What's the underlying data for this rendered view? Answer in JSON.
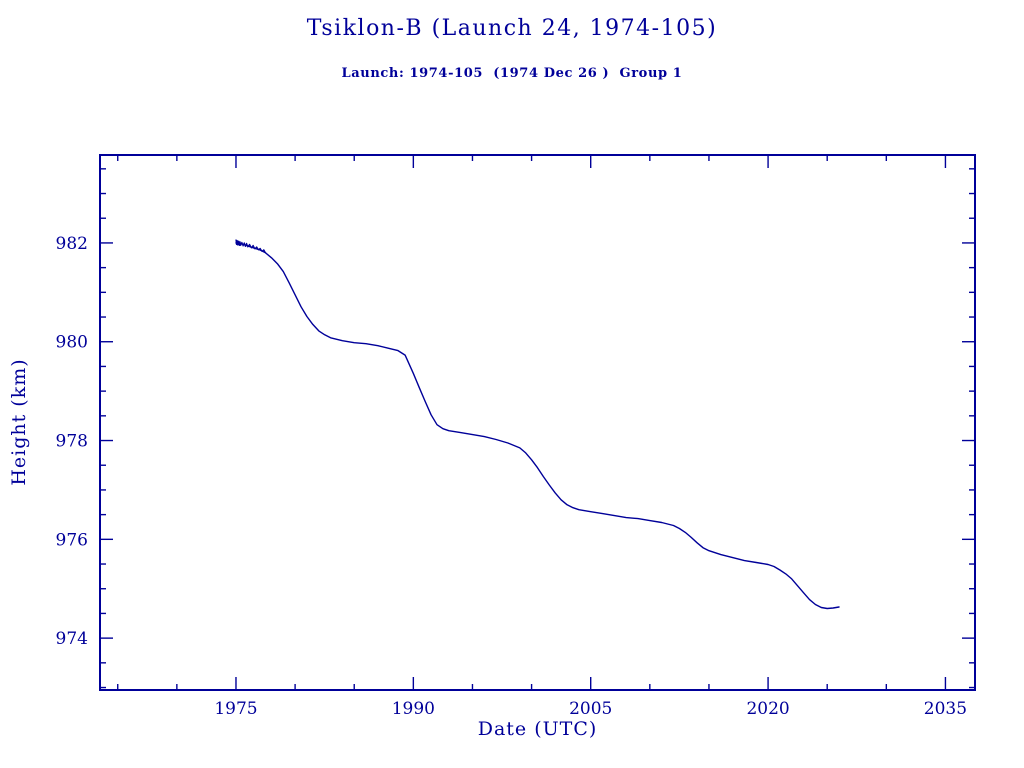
{
  "colors": {
    "ink": "#000099",
    "line": "#000099",
    "background": "#ffffff"
  },
  "chart_data": {
    "type": "line",
    "title": "Tsiklon-B (Launch 24, 1974-105)",
    "subtitle": "Launch: 1974-105  (1974 Dec 26 )  Group 1",
    "xlabel": "Date (UTC)",
    "ylabel": "Height (km)",
    "xlim": [
      1963.5,
      2037.5
    ],
    "ylim": [
      972.95,
      983.78
    ],
    "x_ticks": [
      1975,
      1990,
      2005,
      2020,
      2035
    ],
    "y_ticks": [
      974,
      976,
      978,
      980,
      982
    ],
    "x_minor_step": 5,
    "y_minor_step": 0.5,
    "grid": false,
    "legend": "none",
    "series": [
      {
        "name": "height_km",
        "points": [
          [
            1975.0,
            982.0
          ],
          [
            1975.5,
            981.98
          ],
          [
            1976.0,
            981.94
          ],
          [
            1976.5,
            981.9
          ],
          [
            1977.0,
            981.86
          ],
          [
            1977.5,
            981.8
          ],
          [
            1978.0,
            981.7
          ],
          [
            1978.5,
            981.58
          ],
          [
            1979.0,
            981.42
          ],
          [
            1979.5,
            981.19
          ],
          [
            1980.0,
            980.95
          ],
          [
            1980.5,
            980.71
          ],
          [
            1981.0,
            980.51
          ],
          [
            1981.5,
            980.35
          ],
          [
            1982.0,
            980.22
          ],
          [
            1982.5,
            980.14
          ],
          [
            1983.0,
            980.08
          ],
          [
            1984.0,
            980.02
          ],
          [
            1985.0,
            979.98
          ],
          [
            1986.0,
            979.96
          ],
          [
            1987.0,
            979.92
          ],
          [
            1988.0,
            979.86
          ],
          [
            1988.7,
            979.82
          ],
          [
            1989.3,
            979.73
          ],
          [
            1990.0,
            979.36
          ],
          [
            1990.5,
            979.07
          ],
          [
            1991.0,
            978.79
          ],
          [
            1991.5,
            978.52
          ],
          [
            1992.0,
            978.32
          ],
          [
            1992.5,
            978.24
          ],
          [
            1993.0,
            978.2
          ],
          [
            1994.0,
            978.16
          ],
          [
            1995.0,
            978.12
          ],
          [
            1996.0,
            978.08
          ],
          [
            1997.0,
            978.02
          ],
          [
            1998.0,
            977.95
          ],
          [
            1999.0,
            977.85
          ],
          [
            1999.5,
            977.75
          ],
          [
            2000.0,
            977.61
          ],
          [
            2000.5,
            977.45
          ],
          [
            2001.0,
            977.27
          ],
          [
            2001.5,
            977.1
          ],
          [
            2002.0,
            976.94
          ],
          [
            2002.5,
            976.8
          ],
          [
            2003.0,
            976.7
          ],
          [
            2003.5,
            976.64
          ],
          [
            2004.0,
            976.6
          ],
          [
            2005.0,
            976.56
          ],
          [
            2006.0,
            976.52
          ],
          [
            2007.0,
            976.48
          ],
          [
            2008.0,
            976.44
          ],
          [
            2009.0,
            976.42
          ],
          [
            2010.0,
            976.38
          ],
          [
            2011.0,
            976.34
          ],
          [
            2012.0,
            976.28
          ],
          [
            2012.5,
            976.22
          ],
          [
            2013.0,
            976.14
          ],
          [
            2013.5,
            976.04
          ],
          [
            2014.0,
            975.93
          ],
          [
            2014.5,
            975.83
          ],
          [
            2015.0,
            975.77
          ],
          [
            2016.0,
            975.69
          ],
          [
            2017.0,
            975.63
          ],
          [
            2018.0,
            975.57
          ],
          [
            2019.0,
            975.53
          ],
          [
            2020.0,
            975.49
          ],
          [
            2020.5,
            975.45
          ],
          [
            2021.0,
            975.38
          ],
          [
            2021.5,
            975.3
          ],
          [
            2022.0,
            975.2
          ],
          [
            2022.5,
            975.06
          ],
          [
            2023.0,
            974.92
          ],
          [
            2023.5,
            974.78
          ],
          [
            2024.0,
            974.68
          ],
          [
            2024.5,
            974.62
          ],
          [
            2025.0,
            974.6
          ],
          [
            2025.5,
            974.61
          ],
          [
            2026.0,
            974.63
          ]
        ]
      },
      {
        "name": "early_dense_tracking",
        "points": [
          [
            1975.0,
            982.06
          ],
          [
            1975.04,
            981.97
          ],
          [
            1975.08,
            982.05
          ],
          [
            1975.12,
            981.96
          ],
          [
            1975.16,
            982.04
          ],
          [
            1975.2,
            981.96
          ],
          [
            1975.25,
            982.03
          ],
          [
            1975.3,
            981.95
          ],
          [
            1975.35,
            982.02
          ],
          [
            1975.4,
            981.95
          ],
          [
            1975.5,
            982.01
          ],
          [
            1975.6,
            981.94
          ],
          [
            1975.7,
            982.0
          ],
          [
            1975.8,
            981.93
          ],
          [
            1975.9,
            981.99
          ],
          [
            1976.0,
            981.92
          ],
          [
            1976.15,
            981.97
          ],
          [
            1976.3,
            981.9
          ],
          [
            1976.45,
            981.95
          ],
          [
            1976.6,
            981.88
          ],
          [
            1976.75,
            981.92
          ],
          [
            1976.9,
            981.86
          ],
          [
            1977.05,
            981.89
          ],
          [
            1977.2,
            981.83
          ],
          [
            1977.35,
            981.86
          ],
          [
            1977.5,
            981.8
          ]
        ]
      }
    ]
  }
}
